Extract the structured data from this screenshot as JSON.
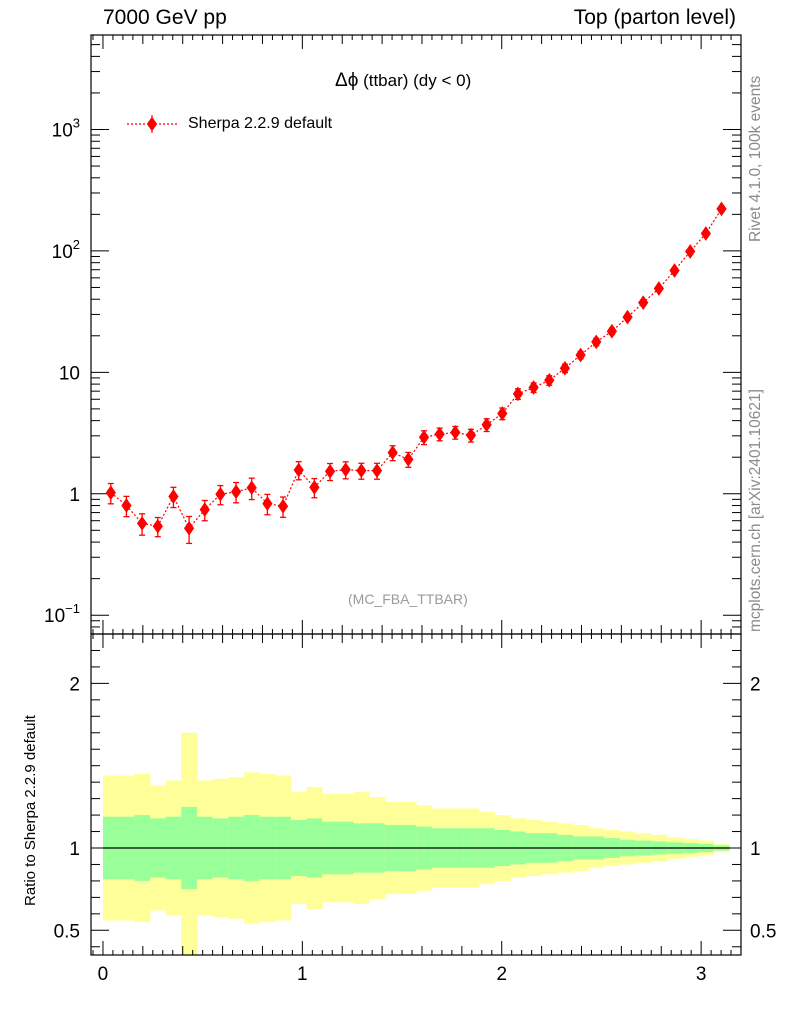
{
  "header": {
    "left": "7000 GeV pp",
    "right": "Top (parton level)"
  },
  "side_text": {
    "rivet": "Rivet 4.1.0,  100k events",
    "mcplots": "mcplots.cern.ch [arXiv:2401.10621]"
  },
  "chart_data": {
    "type": "scatter",
    "title_symbol": "Δϕ",
    "title_rest": "(ttbar) (dy < 0)",
    "annotation": "(MC_FBA_TTBAR)",
    "xlabel": "",
    "ylabel": "",
    "ratio_ylabel": "Ratio to Sherpa 2.2.9 default",
    "xlim": [
      -0.06,
      3.2
    ],
    "ylim": [
      0.07,
      6000
    ],
    "yscale": "log",
    "ratio_ylim": [
      0.35,
      2.3
    ],
    "colors": {
      "series": "#ff0000",
      "band_outer": "#ffff99",
      "band_inner": "#99ff99",
      "reference": "#000000"
    },
    "x_ticks": [
      "0",
      "1",
      "2",
      "3"
    ],
    "y_ticks": [
      {
        "base": "10",
        "exp": "−1",
        "value": 0.1
      },
      {
        "base": "1",
        "exp": "",
        "value": 1
      },
      {
        "base": "10",
        "exp": "",
        "value": 10
      },
      {
        "base": "10",
        "exp": "2",
        "value": 100
      },
      {
        "base": "10",
        "exp": "3",
        "value": 1000
      }
    ],
    "ratio_y_ticks": [
      "0.5",
      "1",
      "2"
    ],
    "series": [
      {
        "name": "Sherpa 2.2.9 default",
        "x": [
          0.0393,
          0.1178,
          0.1963,
          0.2749,
          0.3534,
          0.432,
          0.5105,
          0.589,
          0.6676,
          0.7461,
          0.8247,
          0.9032,
          0.9817,
          1.0603,
          1.1388,
          1.2174,
          1.2959,
          1.3744,
          1.453,
          1.5315,
          1.6101,
          1.6886,
          1.7671,
          1.8457,
          1.9242,
          2.0028,
          2.0813,
          2.1598,
          2.2384,
          2.3169,
          2.3955,
          2.474,
          2.5525,
          2.6311,
          2.7096,
          2.7882,
          2.8667,
          2.9452,
          3.0238,
          3.1023
        ],
        "y": [
          1.02,
          0.8,
          0.57,
          0.54,
          0.95,
          0.52,
          0.74,
          0.99,
          1.04,
          1.12,
          0.83,
          0.79,
          1.57,
          1.13,
          1.53,
          1.58,
          1.55,
          1.55,
          2.18,
          1.92,
          2.92,
          3.1,
          3.2,
          3.03,
          3.7,
          4.58,
          6.65,
          7.5,
          8.6,
          10.8,
          13.9,
          17.8,
          21.8,
          28.5,
          37.5,
          49.0,
          69.0,
          99.0,
          139.0,
          222.0
        ],
        "ratio_inner_lo": [
          0.81,
          0.81,
          0.8,
          0.82,
          0.81,
          0.75,
          0.81,
          0.82,
          0.81,
          0.8,
          0.81,
          0.81,
          0.83,
          0.82,
          0.84,
          0.84,
          0.85,
          0.85,
          0.86,
          0.86,
          0.87,
          0.88,
          0.88,
          0.88,
          0.88,
          0.89,
          0.9,
          0.91,
          0.91,
          0.92,
          0.93,
          0.93,
          0.94,
          0.95,
          0.955,
          0.96,
          0.965,
          0.97,
          0.975,
          0.985
        ],
        "ratio_inner_hi": [
          1.19,
          1.19,
          1.2,
          1.18,
          1.19,
          1.25,
          1.19,
          1.18,
          1.19,
          1.2,
          1.19,
          1.19,
          1.17,
          1.18,
          1.16,
          1.16,
          1.15,
          1.15,
          1.14,
          1.14,
          1.13,
          1.12,
          1.12,
          1.12,
          1.12,
          1.11,
          1.1,
          1.09,
          1.09,
          1.08,
          1.07,
          1.07,
          1.06,
          1.05,
          1.045,
          1.04,
          1.035,
          1.03,
          1.025,
          1.015
        ],
        "ratio_outer_lo": [
          0.56,
          0.56,
          0.55,
          0.62,
          0.59,
          0.3,
          0.59,
          0.58,
          0.57,
          0.54,
          0.55,
          0.56,
          0.66,
          0.63,
          0.67,
          0.67,
          0.66,
          0.69,
          0.72,
          0.72,
          0.74,
          0.76,
          0.76,
          0.76,
          0.78,
          0.8,
          0.82,
          0.83,
          0.84,
          0.85,
          0.86,
          0.88,
          0.89,
          0.9,
          0.91,
          0.92,
          0.935,
          0.945,
          0.955,
          0.975
        ],
        "ratio_outer_hi": [
          1.44,
          1.44,
          1.45,
          1.38,
          1.41,
          1.7,
          1.41,
          1.42,
          1.43,
          1.46,
          1.45,
          1.44,
          1.34,
          1.37,
          1.33,
          1.33,
          1.34,
          1.31,
          1.28,
          1.28,
          1.26,
          1.24,
          1.24,
          1.24,
          1.22,
          1.2,
          1.18,
          1.17,
          1.16,
          1.15,
          1.14,
          1.12,
          1.11,
          1.1,
          1.09,
          1.08,
          1.065,
          1.055,
          1.045,
          1.025
        ]
      }
    ]
  }
}
